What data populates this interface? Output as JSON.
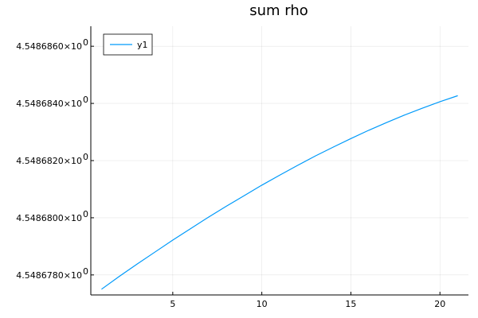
{
  "chart_data": {
    "type": "line",
    "title": "sum rho",
    "xlabel": "",
    "ylabel": "",
    "xlim": [
      0.4,
      21.6
    ],
    "ylim": [
      4.5486773,
      4.5486867
    ],
    "grid": true,
    "legend_position": "top-left",
    "x_ticks": [
      5,
      10,
      15,
      20
    ],
    "y_ticks": [
      {
        "value": 4.548678,
        "mantissa": "4.5486780×10",
        "exponent": "0"
      },
      {
        "value": 4.54868,
        "mantissa": "4.5486800×10",
        "exponent": "0"
      },
      {
        "value": 4.548682,
        "mantissa": "4.5486820×10",
        "exponent": "0"
      },
      {
        "value": 4.548684,
        "mantissa": "4.5486840×10",
        "exponent": "0"
      },
      {
        "value": 4.548686,
        "mantissa": "4.5486860×10",
        "exponent": "0"
      }
    ],
    "series": [
      {
        "name": "y1",
        "color": "#009AFA",
        "x": [
          1,
          2,
          3,
          4,
          5,
          6,
          7,
          8,
          9,
          10,
          11,
          12,
          13,
          14,
          15,
          16,
          17,
          18,
          19,
          20,
          21
        ],
        "values": [
          4.5486775,
          4.54867795,
          4.54867838,
          4.5486788,
          4.54867922,
          4.54867962,
          4.54868002,
          4.5486804,
          4.54868077,
          4.54868114,
          4.54868149,
          4.54868183,
          4.54868216,
          4.54868247,
          4.54868277,
          4.54868306,
          4.54868333,
          4.54868359,
          4.54868383,
          4.54868406,
          4.54868427
        ]
      }
    ]
  }
}
